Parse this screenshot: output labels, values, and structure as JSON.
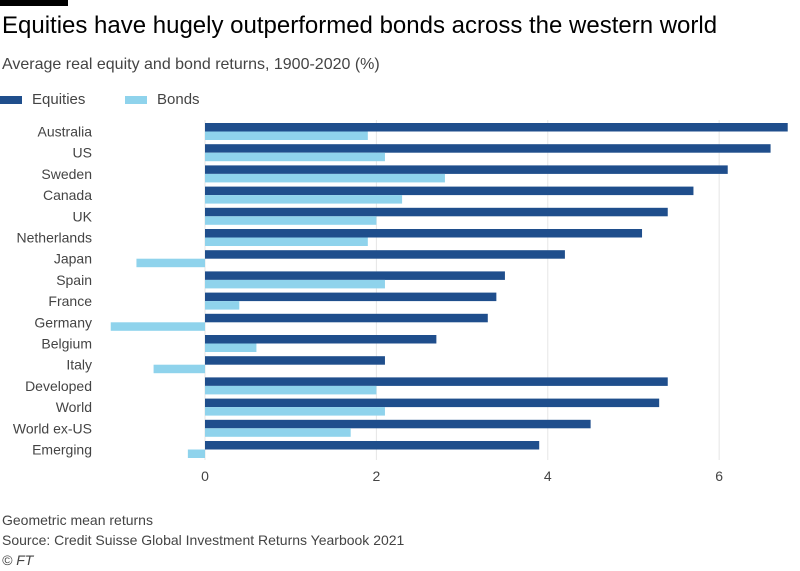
{
  "header": {
    "title": "Equities have hugely outperformed bonds across the western world",
    "subtitle": "Average real equity and bond returns, 1900-2020 (%)"
  },
  "footer": {
    "note": "Geometric mean returns",
    "source": "Source: Credit Suisse Global Investment Returns Yearbook 2021",
    "credit": "© FT"
  },
  "colors": {
    "equities": "#1f4e8c",
    "bonds": "#8fd3ec",
    "grid": "#e6e6e6",
    "text": "#444444"
  },
  "chart_data": {
    "type": "bar",
    "orientation": "horizontal",
    "title": "Equities have hugely outperformed bonds across the western world",
    "subtitle": "Average real equity and bond returns, 1900-2020 (%)",
    "categories": [
      "Australia",
      "US",
      "Sweden",
      "Canada",
      "UK",
      "Netherlands",
      "Japan",
      "Spain",
      "France",
      "Germany",
      "Belgium",
      "Italy",
      "Developed",
      "World",
      "World ex-US",
      "Emerging"
    ],
    "series": [
      {
        "name": "Equities",
        "color": "#1f4e8c",
        "values": [
          6.8,
          6.6,
          6.1,
          5.7,
          5.4,
          5.1,
          4.2,
          3.5,
          3.4,
          3.3,
          2.7,
          2.1,
          5.4,
          5.3,
          4.5,
          3.9
        ]
      },
      {
        "name": "Bonds",
        "color": "#8fd3ec",
        "values": [
          1.9,
          2.1,
          2.8,
          2.3,
          2.0,
          1.9,
          -0.8,
          2.1,
          0.4,
          -1.1,
          0.6,
          -0.6,
          2.0,
          2.1,
          1.7,
          -0.2
        ]
      }
    ],
    "xlim": [
      -1.1,
      6.85
    ],
    "xticks": [
      0,
      2,
      4,
      6
    ],
    "xlabel": "",
    "ylabel": "",
    "grid": "vertical",
    "legend": "top-left"
  }
}
